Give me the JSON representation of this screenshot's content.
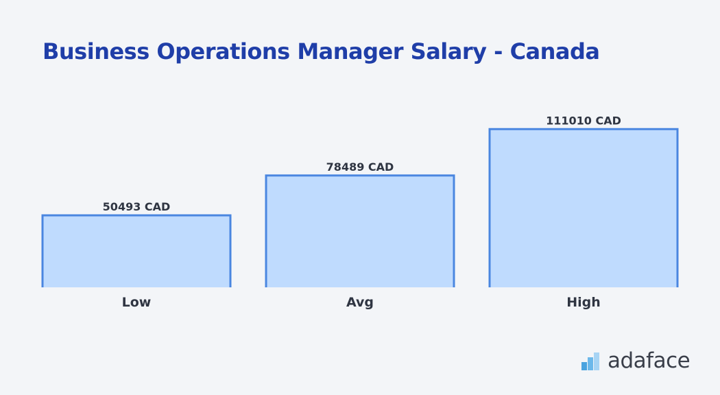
{
  "chart_data": {
    "type": "bar",
    "title": "Business Operations Manager Salary - Canada",
    "categories": [
      "Low",
      "Avg",
      "High"
    ],
    "values": [
      50493,
      78489,
      111010
    ],
    "value_labels": [
      "50493 CAD",
      "78489 CAD",
      "111010 CAD"
    ],
    "unit": "CAD",
    "xlabel": "",
    "ylabel": "",
    "ylim": [
      0,
      115000
    ],
    "grid": false
  },
  "brand": {
    "name": "adaface",
    "icon": "bar-steps-logo-icon"
  },
  "colors": {
    "title": "#1f3ea8",
    "bar_fill": "#bfdbfe",
    "bar_stroke": "#4a86e0",
    "label": "#2f3542",
    "background": "#f3f5f8"
  }
}
